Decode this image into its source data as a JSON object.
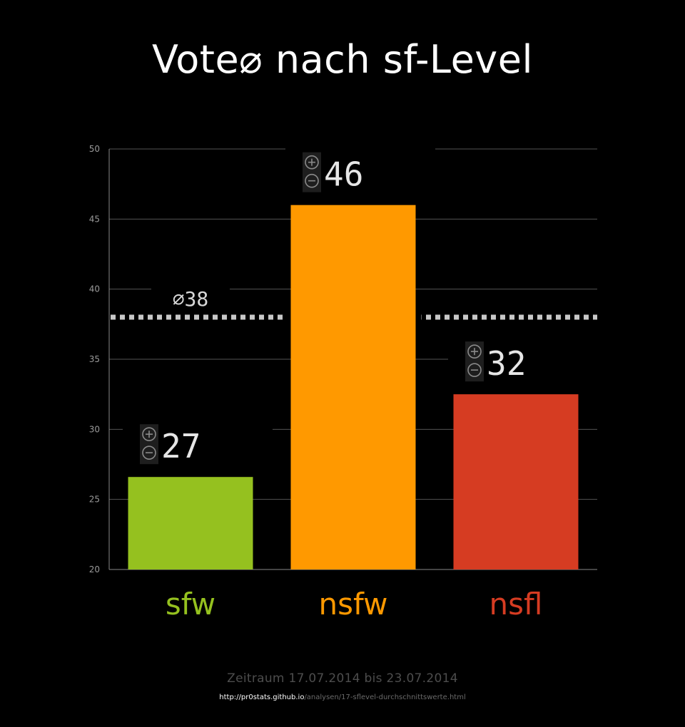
{
  "chart_data": {
    "type": "bar",
    "title": "Vote⌀ nach sf-Level",
    "categories": [
      "sfw",
      "nsfw",
      "nsfl"
    ],
    "values": [
      26.6,
      46,
      32.5
    ],
    "value_labels": [
      "27",
      "46",
      "32"
    ],
    "category_colors": [
      "#95c11f",
      "#ff9900",
      "#d63c22"
    ],
    "ylim": [
      20,
      50
    ],
    "yticks": [
      20,
      25,
      30,
      35,
      40,
      45,
      50
    ],
    "grid": true,
    "xlabel": "",
    "ylabel": "",
    "average": {
      "value": 38,
      "label": "⌀38"
    },
    "vote_icons": [
      "plus-circle-icon",
      "minus-circle-icon"
    ]
  },
  "footer": {
    "period": "Zeitraum 17.07.2014 bis 23.07.2014",
    "url_host": "http://pr0stats.github.io",
    "url_path": "/analysen/17-sflevel-durchschnittswerte.html"
  },
  "colors": {
    "background": "#000000",
    "grid": "#555555",
    "axis": "#888888",
    "average_line": "#c8c8c8",
    "icon_box": "#1e1e1e",
    "icon_stroke": "#8a8a8a"
  }
}
